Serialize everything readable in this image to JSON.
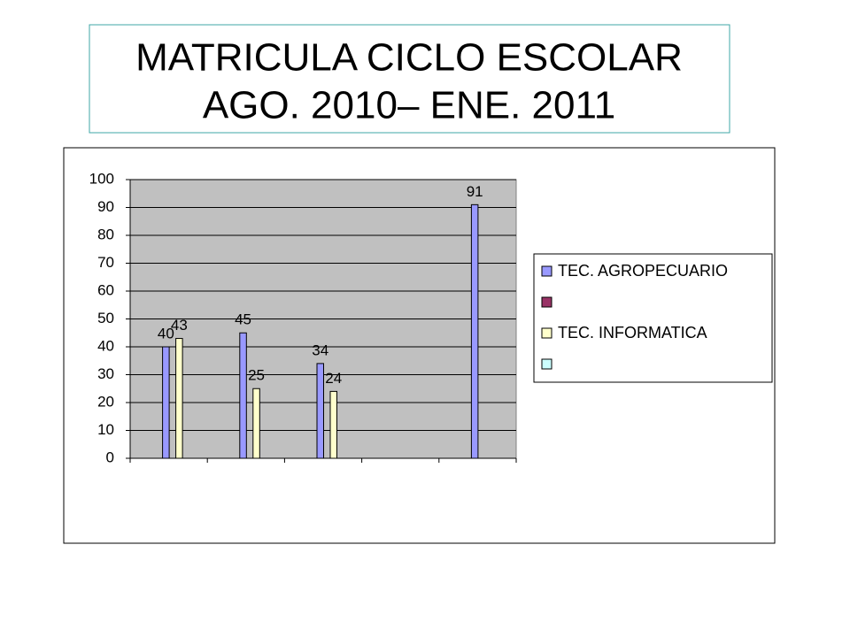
{
  "chart_data": {
    "type": "bar",
    "title_lines": [
      "MATRICULA CICLO ESCOLAR",
      "AGO. 2010– ENE. 2011"
    ],
    "categories": [
      null,
      null,
      null,
      null,
      null
    ],
    "series": [
      {
        "name": "TEC. AGROPECUARIO",
        "color": "#9999ff",
        "values": [
          40,
          45,
          34,
          null,
          91
        ]
      },
      {
        "name": null,
        "color": "#993366",
        "values": [
          null,
          null,
          null,
          null,
          null
        ]
      },
      {
        "name": "TEC. INFORMATICA",
        "color": "#ffffcc",
        "values": [
          43,
          25,
          24,
          null,
          null
        ]
      },
      {
        "name": null,
        "color": "#ccffff",
        "values": [
          null,
          null,
          null,
          null,
          null
        ]
      }
    ],
    "ylim": [
      0,
      100
    ],
    "yticks": [
      0,
      10,
      20,
      30,
      40,
      50,
      60,
      70,
      80,
      90,
      100
    ],
    "grid": true,
    "legend": "right",
    "plot_background": "#c0c0c0"
  }
}
